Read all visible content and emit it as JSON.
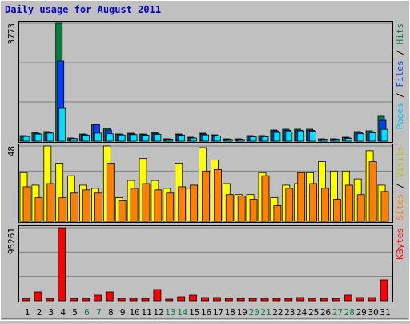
{
  "chart_data": [
    {
      "type": "bar",
      "title": "Daily usage for August 2011",
      "ylim": [
        0,
        3773
      ],
      "yticks": [
        3773
      ],
      "legend_separator": " / ",
      "series": [
        {
          "name": "Hits",
          "color": "#008040",
          "text_color": "#008040",
          "values": [
            180,
            282,
            308,
            3773,
            103,
            231,
            550,
            411,
            231,
            257,
            231,
            282,
            77,
            231,
            128,
            257,
            205,
            77,
            77,
            180,
            180,
            359,
            385,
            385,
            385,
            77,
            77,
            128,
            308,
            334,
            796
          ]
        },
        {
          "name": "Files",
          "color": "#0040ff",
          "text_color": "#0040ff",
          "values": [
            160,
            250,
            280,
            2567,
            90,
            210,
            530,
            360,
            210,
            230,
            210,
            250,
            70,
            210,
            110,
            230,
            180,
            65,
            65,
            160,
            160,
            330,
            350,
            350,
            350,
            65,
            65,
            110,
            280,
            300,
            667
          ]
        },
        {
          "name": "Pages",
          "color": "#00e0ff",
          "text_color": "#00c0ff",
          "values": [
            150,
            230,
            260,
            1052,
            80,
            190,
            260,
            240,
            200,
            210,
            190,
            220,
            60,
            190,
            100,
            200,
            170,
            55,
            55,
            140,
            140,
            280,
            300,
            330,
            320,
            55,
            55,
            90,
            240,
            270,
            380
          ]
        }
      ]
    },
    {
      "type": "bar",
      "ylim": [
        0,
        48
      ],
      "yticks": [
        48
      ],
      "legend_separator": " / ",
      "series": [
        {
          "name": "Visits",
          "color": "#ffff00",
          "text_color": "#c0c000",
          "values": [
            31,
            23,
            48,
            37,
            29,
            23,
            21,
            48,
            15,
            26,
            40,
            26,
            21,
            37,
            21,
            47,
            39,
            24,
            17,
            17,
            31,
            15,
            23,
            24,
            31,
            38,
            32,
            32,
            27,
            45,
            23
          ]
        },
        {
          "name": "Sites",
          "color": "#ff8000",
          "text_color": "#ff8000",
          "values": [
            22,
            15,
            24,
            15,
            18,
            20,
            18,
            37,
            13,
            21,
            24,
            20,
            18,
            22,
            23,
            32,
            33,
            17,
            16,
            14,
            29,
            10,
            21,
            31,
            24,
            21,
            14,
            23,
            17,
            38,
            19
          ]
        }
      ]
    },
    {
      "type": "bar",
      "ylim": [
        0,
        95261
      ],
      "yticks": [
        95261
      ],
      "categories": [
        "1",
        "2",
        "3",
        "4",
        "5",
        "6",
        "7",
        "8",
        "9",
        "10",
        "11",
        "12",
        "13",
        "14",
        "15",
        "16",
        "17",
        "18",
        "19",
        "20",
        "21",
        "22",
        "23",
        "24",
        "25",
        "26",
        "27",
        "28",
        "29",
        "30",
        "31"
      ],
      "category_colors": [
        "#000000",
        "#000000",
        "#000000",
        "#000000",
        "#000000",
        "#008040",
        "#008040",
        "#000000",
        "#000000",
        "#000000",
        "#000000",
        "#000000",
        "#008040",
        "#008040",
        "#000000",
        "#000000",
        "#000000",
        "#000000",
        "#000000",
        "#008040",
        "#008040",
        "#000000",
        "#000000",
        "#000000",
        "#000000",
        "#000000",
        "#008040",
        "#008040",
        "#000000",
        "#000000",
        "#000000"
      ],
      "series": [
        {
          "name": "KBytes",
          "color": "#ff0000",
          "text_color": "#ff0000",
          "values": [
            3141,
            11517,
            3141,
            95261,
            3141,
            3141,
            7329,
            11517,
            3141,
            3141,
            3141,
            14658,
            2094,
            5235,
            7329,
            4188,
            4188,
            3141,
            3141,
            3141,
            3141,
            3141,
            3141,
            4188,
            3141,
            3141,
            3141,
            7329,
            4188,
            4188,
            27222
          ]
        }
      ]
    }
  ]
}
